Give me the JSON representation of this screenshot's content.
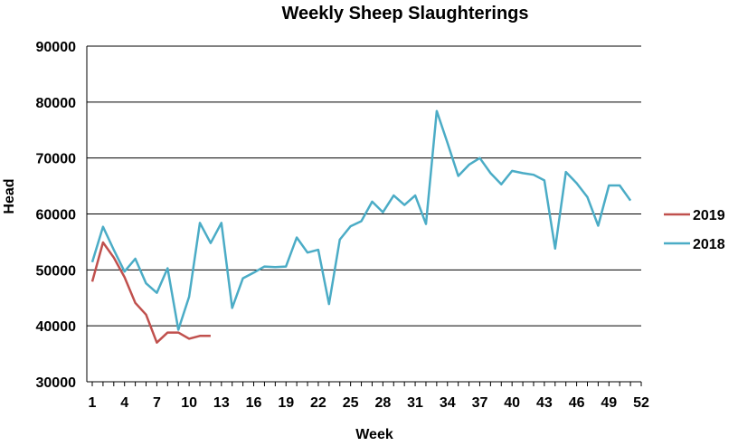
{
  "chart_data": {
    "type": "line",
    "title": "Weekly Sheep Slaughterings",
    "xlabel": "Week",
    "ylabel": "Head",
    "ylim": [
      30000,
      90000
    ],
    "yticks": [
      30000,
      40000,
      50000,
      60000,
      70000,
      80000,
      90000
    ],
    "xlim": [
      1,
      52
    ],
    "xticks": [
      1,
      4,
      7,
      10,
      13,
      16,
      19,
      22,
      25,
      28,
      31,
      34,
      37,
      40,
      43,
      46,
      49,
      52
    ],
    "grid": "horizontal",
    "legend_position": "right",
    "series": [
      {
        "name": "2019",
        "color": "#c0504d",
        "x": [
          1,
          2,
          3,
          4,
          5,
          6,
          7,
          8,
          9,
          10,
          11,
          12
        ],
        "values": [
          47900,
          54900,
          52200,
          48700,
          44100,
          42000,
          37000,
          38800,
          38800,
          37700,
          38200,
          38200
        ]
      },
      {
        "name": "2018",
        "color": "#4bacc6",
        "x": [
          1,
          2,
          3,
          4,
          5,
          6,
          7,
          8,
          9,
          10,
          11,
          12,
          13,
          14,
          15,
          16,
          17,
          18,
          19,
          20,
          21,
          22,
          23,
          24,
          25,
          26,
          27,
          28,
          29,
          30,
          31,
          32,
          33,
          34,
          35,
          36,
          37,
          38,
          39,
          40,
          41,
          42,
          43,
          44,
          45,
          46,
          47,
          48,
          49,
          50,
          51
        ],
        "values": [
          51400,
          57700,
          53600,
          49700,
          52000,
          47600,
          45900,
          50300,
          39300,
          45200,
          58400,
          54800,
          58400,
          43200,
          48500,
          49500,
          50600,
          50500,
          50600,
          55800,
          53100,
          53600,
          43900,
          55400,
          57800,
          58700,
          62200,
          60300,
          63300,
          61600,
          63300,
          58200,
          78400,
          72700,
          66800,
          68800,
          70000,
          67300,
          65300,
          67700,
          67300,
          67000,
          66000,
          53800,
          67500,
          65500,
          63000,
          57900,
          65100,
          65100,
          62400
        ]
      }
    ]
  }
}
